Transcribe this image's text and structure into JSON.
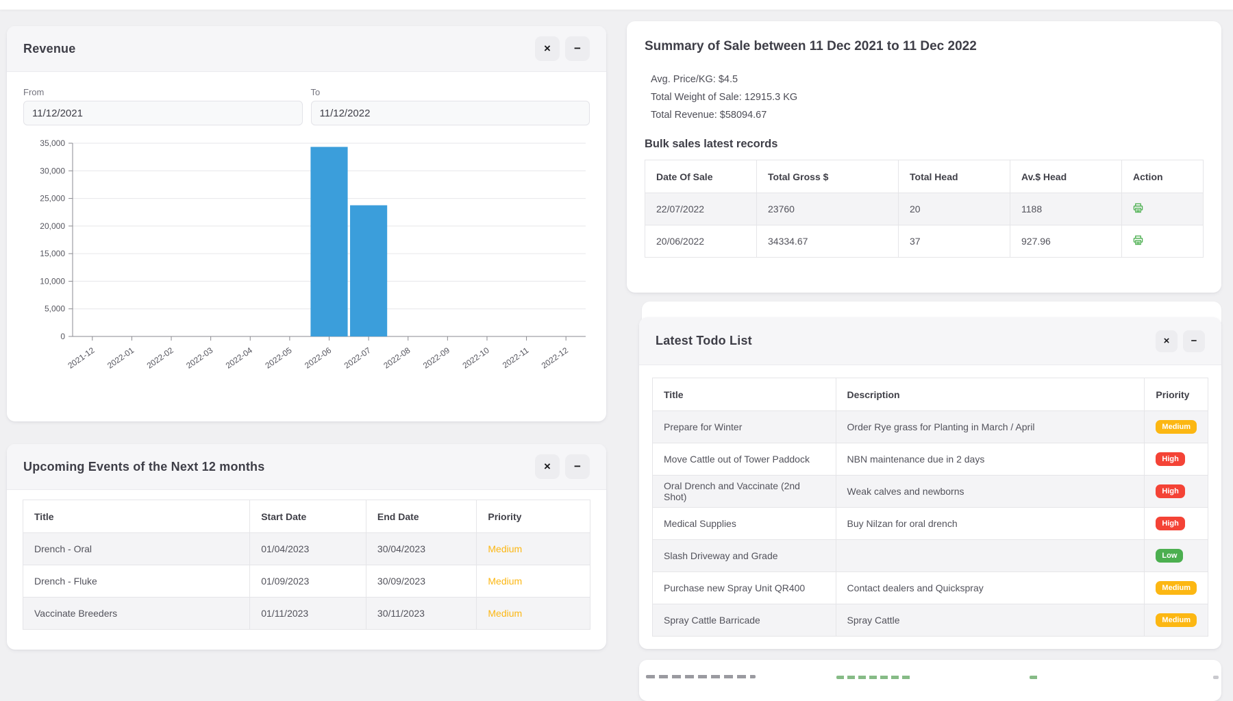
{
  "revenue_card": {
    "title": "Revenue",
    "close_label": "×",
    "minimize_label": "−",
    "from_label": "From",
    "from_value": "11/12/2021",
    "to_label": "To",
    "to_value": "11/12/2022"
  },
  "chart_data": {
    "type": "bar",
    "title": "",
    "xlabel": "",
    "ylabel": "",
    "categories": [
      "2021-12",
      "2022-01",
      "2022-02",
      "2022-03",
      "2022-04",
      "2022-05",
      "2022-06",
      "2022-07",
      "2022-08",
      "2022-09",
      "2022-10",
      "2022-11",
      "2022-12"
    ],
    "values": [
      0,
      0,
      0,
      0,
      0,
      0,
      34334.67,
      23760,
      0,
      0,
      0,
      0,
      0
    ],
    "series_name": "Revenue",
    "ylim": [
      0,
      35000
    ],
    "ytick_step": 5000,
    "bar_color": "#3b9edb",
    "grid": true,
    "legend": false
  },
  "summary_card": {
    "title": "Summary of Sale between 11 Dec 2021 to 11 Dec 2022",
    "stats": [
      "Avg. Price/KG: $4.5",
      "Total Weight of Sale: 12915.3 KG",
      "Total Revenue: $58094.67"
    ],
    "table_title": "Bulk sales latest records",
    "table": {
      "columns": [
        "Date Of Sale",
        "Total Gross $",
        "Total Head",
        "Av.$ Head",
        "Action"
      ],
      "rows": [
        {
          "date": "22/07/2022",
          "gross": "23760",
          "head": "20",
          "avg": "1188",
          "action": "printer-icon"
        },
        {
          "date": "20/06/2022",
          "gross": "34334.67",
          "head": "37",
          "avg": "927.96",
          "action": "printer-icon"
        }
      ]
    }
  },
  "events_card": {
    "title": "Upcoming Events of the Next 12 months",
    "close_label": "×",
    "minimize_label": "−",
    "table": {
      "columns": [
        "Title",
        "Start Date",
        "End Date",
        "Priority"
      ],
      "rows": [
        {
          "title": "Drench - Oral",
          "start": "01/04/2023",
          "end": "30/04/2023",
          "priority": "Medium"
        },
        {
          "title": "Drench - Fluke",
          "start": "01/09/2023",
          "end": "30/09/2023",
          "priority": "Medium"
        },
        {
          "title": "Vaccinate Breeders",
          "start": "01/11/2023",
          "end": "30/11/2023",
          "priority": "Medium"
        }
      ]
    }
  },
  "todo_card": {
    "title": "Latest Todo List",
    "close_label": "×",
    "minimize_label": "−",
    "table": {
      "columns": [
        "Title",
        "Description",
        "Priority"
      ],
      "rows": [
        {
          "title": "Prepare for Winter",
          "description": "Order Rye grass for Planting in March / April",
          "priority": "Medium"
        },
        {
          "title": "Move Cattle out of Tower Paddock",
          "description": "NBN maintenance due in 2 days",
          "priority": "High"
        },
        {
          "title": "Oral Drench and Vaccinate (2nd Shot)",
          "description": "Weak calves and newborns",
          "priority": "High"
        },
        {
          "title": "Medical Supplies",
          "description": "Buy Nilzan for oral drench",
          "priority": "High"
        },
        {
          "title": "Slash Driveway and Grade",
          "description": "",
          "priority": "Low"
        },
        {
          "title": "Purchase new Spray Unit QR400",
          "description": "Contact dealers and Quickspray",
          "priority": "Medium"
        },
        {
          "title": "Spray Cattle Barricade",
          "description": "Spray Cattle",
          "priority": "Medium"
        }
      ]
    }
  },
  "priority_colors": {
    "High": "#f44336",
    "Medium": "#fcb713",
    "Low": "#4caf50"
  },
  "icon_colors": {
    "printer": "#4caf50"
  }
}
